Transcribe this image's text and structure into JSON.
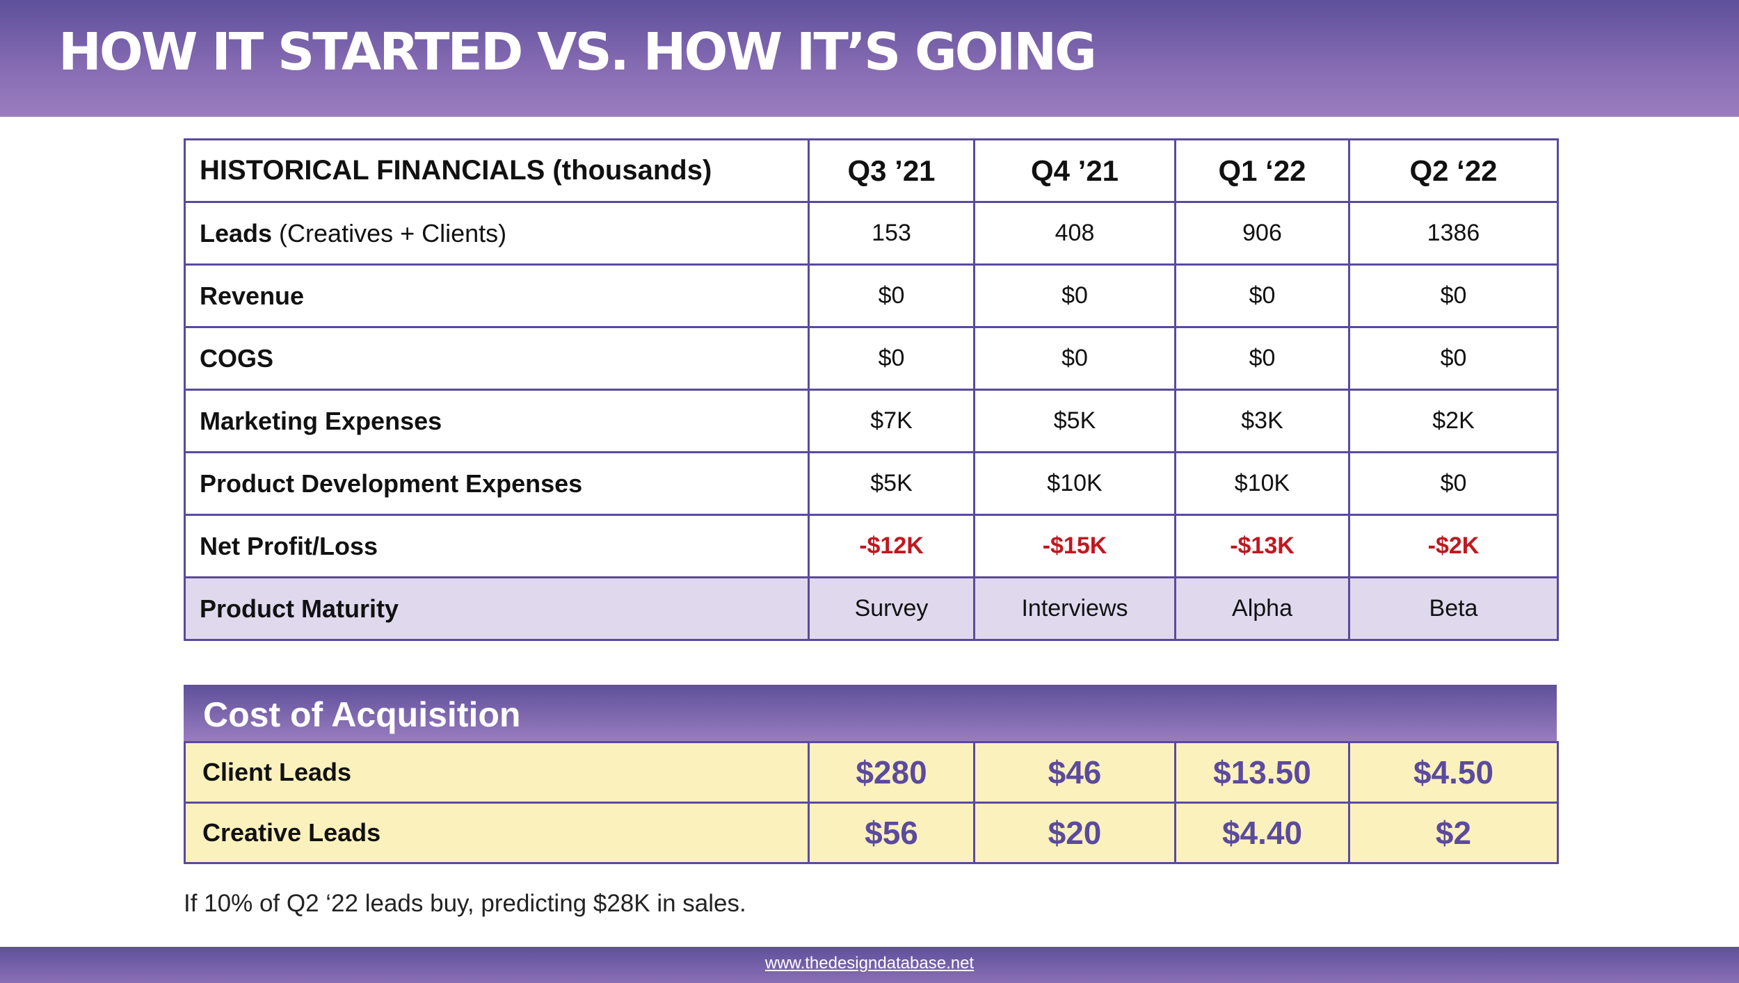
{
  "title": "HOW IT STARTED VS. HOW IT’S GOING",
  "financials": {
    "header": {
      "label": "HISTORICAL FINANCIALS (thousands)",
      "quarters": [
        "Q3 ’21",
        "Q4 ’21",
        "Q1 ‘22",
        "Q2 ‘22"
      ]
    },
    "rows": [
      {
        "label": "Leads",
        "note": " (Creatives + Clients)",
        "values": [
          "153",
          "408",
          "906",
          "1386"
        ]
      },
      {
        "label": "Revenue",
        "values": [
          "$0",
          "$0",
          "$0",
          "$0"
        ]
      },
      {
        "label": "COGS",
        "values": [
          "$0",
          "$0",
          "$0",
          "$0"
        ]
      },
      {
        "label": "Marketing Expenses",
        "values": [
          "$7K",
          "$5K",
          "$3K",
          "$2K"
        ]
      },
      {
        "label": "Product Development Expenses",
        "values": [
          "$5K",
          "$10K",
          "$10K",
          "$0"
        ]
      },
      {
        "label": "Net Profit/Loss",
        "values": [
          "-$12K",
          "-$15K",
          "-$13K",
          "-$2K"
        ]
      },
      {
        "label": "Product Maturity",
        "values": [
          "Survey",
          "Interviews",
          "Alpha",
          "Beta"
        ]
      }
    ]
  },
  "acquisition": {
    "title": "Cost of Acquisition",
    "rows": [
      {
        "label": "Client Leads",
        "values": [
          "$280",
          "$46",
          "$13.50",
          "$4.50"
        ]
      },
      {
        "label": "Creative Leads",
        "values": [
          "$56",
          "$20",
          "$4.40",
          "$2"
        ]
      }
    ]
  },
  "footnote": "If 10% of Q2 ‘22 leads buy, predicting $28K in sales.",
  "footer": {
    "link": "www.thedesigndatabase.net"
  },
  "colors": {
    "brand_purple": "#5e509b",
    "light_purple": "#9a7dbf",
    "negative_red": "#c0181f",
    "maturity_row": "#e0d9ee",
    "acquisition_row": "#fbf1bd"
  }
}
